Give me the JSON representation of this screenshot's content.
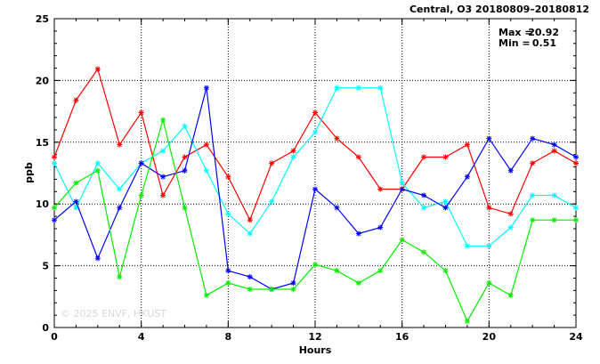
{
  "chart_data": {
    "type": "line",
    "title": "Central, O3 20180809–20180812",
    "xlabel": "Hours",
    "ylabel": "ppb",
    "xlim": [
      0,
      24
    ],
    "ylim": [
      0,
      25
    ],
    "xticks": [
      0,
      4,
      8,
      12,
      16,
      20,
      24
    ],
    "yticks": [
      0,
      5,
      10,
      15,
      20,
      25
    ],
    "grid": true,
    "stats": {
      "max_label": "Max =",
      "max_value": "20.92",
      "min_label": "Min =",
      "min_value": "0.51"
    },
    "watermark": "© 2025  ENVF, HKUST",
    "series": [
      {
        "color": "#ff0000",
        "values": [
          13.8,
          18.4,
          20.92,
          14.8,
          17.4,
          10.7,
          13.8,
          14.8,
          12.2,
          8.7,
          13.3,
          14.3,
          17.4,
          15.3,
          13.8,
          11.2,
          11.2,
          13.8,
          13.8,
          14.8,
          9.7,
          9.2,
          13.3,
          14.3,
          13.3
        ]
      },
      {
        "color": "#00ffff",
        "values": [
          13.3,
          9.7,
          13.3,
          11.2,
          13.3,
          14.3,
          16.3,
          12.7,
          9.2,
          7.6,
          10.2,
          13.8,
          15.8,
          19.4,
          19.4,
          19.4,
          11.7,
          9.7,
          10.2,
          6.6,
          6.6,
          8.1,
          10.7,
          10.7,
          9.7
        ]
      },
      {
        "color": "#0000ff",
        "values": [
          8.7,
          10.2,
          5.6,
          9.7,
          13.3,
          12.2,
          12.7,
          19.4,
          4.6,
          4.1,
          3.1,
          3.6,
          11.2,
          9.7,
          7.6,
          8.1,
          11.2,
          10.7,
          9.7,
          12.2,
          15.3,
          12.7,
          15.3,
          14.8,
          13.8
        ]
      },
      {
        "color": "#00ee00",
        "values": [
          9.7,
          11.7,
          12.7,
          4.1,
          10.7,
          16.8,
          9.7,
          2.6,
          3.6,
          3.1,
          3.1,
          3.1,
          5.1,
          4.6,
          3.6,
          4.6,
          7.1,
          6.1,
          4.6,
          0.51,
          3.6,
          2.6,
          8.7,
          8.7,
          8.7
        ]
      }
    ]
  }
}
